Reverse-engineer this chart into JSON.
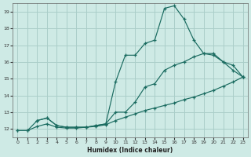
{
  "xlabel": "Humidex (Indice chaleur)",
  "xlim": [
    -0.5,
    23.5
  ],
  "ylim": [
    11.5,
    19.5
  ],
  "xticks": [
    0,
    1,
    2,
    3,
    4,
    5,
    6,
    7,
    8,
    9,
    10,
    11,
    12,
    13,
    14,
    15,
    16,
    17,
    18,
    19,
    20,
    21,
    22,
    23
  ],
  "yticks": [
    12,
    13,
    14,
    15,
    16,
    17,
    18,
    19
  ],
  "bg_color": "#ceeae5",
  "grid_color": "#aacec9",
  "line_color": "#1a6b60",
  "lines": [
    {
      "x": [
        0,
        1,
        2,
        3,
        4,
        5,
        6,
        7,
        8,
        9,
        10,
        11,
        12,
        13,
        14,
        15,
        16,
        17,
        18,
        19,
        20,
        21,
        22,
        23
      ],
      "y": [
        11.9,
        11.9,
        12.5,
        12.65,
        12.2,
        12.1,
        12.1,
        12.1,
        12.2,
        12.3,
        14.8,
        16.4,
        16.4,
        17.1,
        17.3,
        19.2,
        19.35,
        18.55,
        17.3,
        16.5,
        16.4,
        16.0,
        15.5,
        15.1
      ]
    },
    {
      "x": [
        2,
        3,
        4,
        5,
        6,
        7,
        8,
        9,
        10,
        11,
        12,
        13,
        14,
        15,
        16,
        17,
        18,
        19,
        20,
        21,
        22,
        23
      ],
      "y": [
        12.5,
        12.65,
        12.2,
        12.1,
        12.1,
        12.1,
        12.2,
        12.3,
        13.0,
        13.0,
        13.6,
        14.5,
        14.7,
        15.5,
        15.8,
        16.0,
        16.3,
        16.5,
        16.5,
        16.0,
        15.8,
        15.1
      ]
    },
    {
      "x": [
        0,
        1,
        2,
        3,
        4,
        5,
        6,
        7,
        8,
        9,
        10,
        11,
        12,
        13,
        14,
        15,
        16,
        17,
        18,
        19,
        20,
        21,
        22,
        23
      ],
      "y": [
        11.9,
        11.9,
        12.15,
        12.3,
        12.1,
        12.05,
        12.05,
        12.1,
        12.15,
        12.25,
        12.5,
        12.7,
        12.9,
        13.1,
        13.25,
        13.4,
        13.55,
        13.75,
        13.9,
        14.1,
        14.3,
        14.55,
        14.8,
        15.1
      ]
    }
  ]
}
